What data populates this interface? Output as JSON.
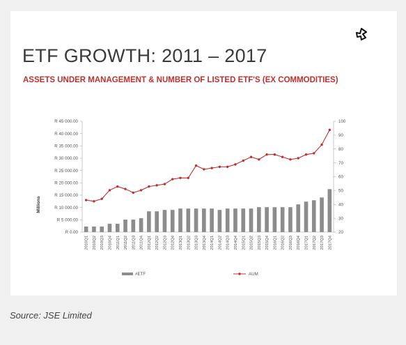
{
  "header": {
    "title": "ETF GROWTH: 2011 – 2017",
    "subtitle": "ASSETS UNDER MANAGEMENT & NUMBER OF LISTED ETF'S (EX COMMODITIES)"
  },
  "logo": {
    "icon": "brand-logo-icon"
  },
  "source": "Source: JSE Limited",
  "colors": {
    "bars": "#8c8c8c",
    "line": "#c0302e",
    "title": "#3a3a3a",
    "subtitle": "#c0302e"
  },
  "chart_data": {
    "type": "bar",
    "categories": [
      "2010Q1",
      "2010Q2",
      "2010Q3",
      "2010Q4",
      "2011Q1",
      "2011Q2",
      "2011Q3",
      "2011Q4",
      "2012Q1",
      "2012Q2",
      "2012Q3",
      "2012Q4",
      "2013Q1",
      "2013Q2",
      "2013Q3",
      "2013Q4",
      "2014Q1",
      "2014Q2",
      "2014Q3",
      "2014Q4",
      "2015Q1",
      "2015Q2",
      "2015Q3",
      "2015Q4",
      "2016Q1",
      "2016Q2",
      "2016Q3",
      "2016Q4",
      "2017Q1",
      "2017Q2",
      "2017Q3",
      "2017Q4"
    ],
    "ylabel": "Millions",
    "left_axis": {
      "ylim": [
        0,
        45000
      ],
      "ticks": [
        0,
        5000,
        10000,
        15000,
        20000,
        25000,
        30000,
        35000,
        40000,
        45000
      ],
      "tick_labels": [
        "R 0.00",
        "R 5 000.00",
        "R 10 000.00",
        "R 15 000.00",
        "R 20 000.00",
        "R 25 000.00",
        "R 30 000.00",
        "R 35 000.00",
        "R 40 000.00",
        "R 45 000.00"
      ]
    },
    "right_axis": {
      "ylim": [
        20,
        100
      ],
      "ticks": [
        20,
        30,
        40,
        50,
        60,
        70,
        80,
        90,
        100
      ],
      "tick_labels": [
        "20",
        "30",
        "40",
        "50",
        "60",
        "70",
        "80",
        "90",
        "100"
      ]
    },
    "series": [
      {
        "name": "#ETF",
        "type": "bar",
        "axis": "right",
        "values": [
          24,
          24,
          24,
          26,
          26,
          29,
          29,
          30,
          35,
          35,
          36,
          36,
          37,
          37,
          37,
          37,
          37,
          36,
          37,
          37,
          37,
          37,
          38,
          38,
          38,
          38,
          38,
          40,
          42,
          43,
          45,
          51
        ]
      },
      {
        "name": "AUM",
        "type": "line",
        "axis": "left",
        "values": [
          13000,
          12500,
          13500,
          17000,
          18500,
          17500,
          16000,
          17000,
          18500,
          19000,
          19500,
          21500,
          22000,
          22000,
          27000,
          25500,
          26000,
          26500,
          26500,
          27500,
          29000,
          30500,
          29500,
          31500,
          31500,
          30500,
          29500,
          30000,
          31500,
          32000,
          35500,
          41500
        ]
      }
    ],
    "legend": {
      "position": "bottom",
      "entries": [
        "#ETF",
        "AUM"
      ]
    },
    "grid": false
  }
}
